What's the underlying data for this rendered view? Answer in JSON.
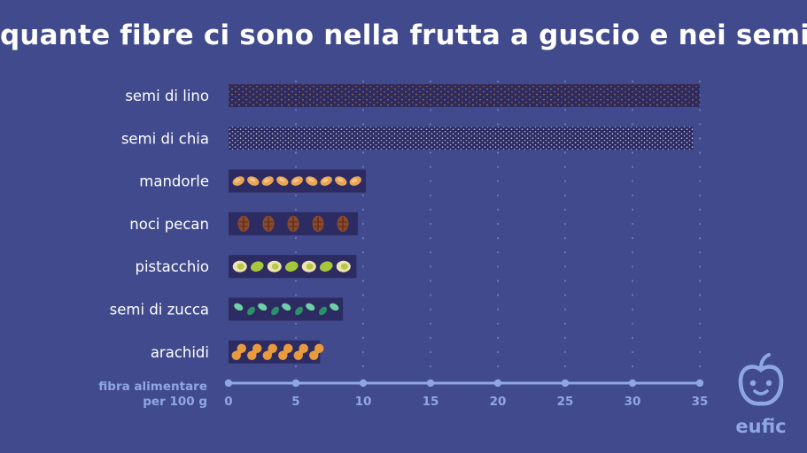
{
  "title": "quante fibre ci sono nella frutta a guscio e nei semi",
  "logo": {
    "text": "eufic",
    "icon": "apple-face-icon"
  },
  "colors": {
    "background": "#414a8c",
    "bar_background": "#2d2c62",
    "axis": "#8fa6e6",
    "grid": "#6d7ab8",
    "text": "#ffffff"
  },
  "chart_data": {
    "type": "bar",
    "orientation": "horizontal",
    "categories": [
      "semi di lino",
      "semi di chia",
      "mandorle",
      "noci pecan",
      "pistacchio",
      "semi di zucca",
      "arachidi"
    ],
    "values": [
      35,
      34.5,
      10.2,
      9.6,
      9.5,
      8.5,
      6.8
    ],
    "xlabel": [
      "fibra alimentare",
      "per 100 g"
    ],
    "xlim": [
      0,
      35
    ],
    "xticks": [
      0,
      5,
      10,
      15,
      20,
      25,
      30,
      35
    ],
    "grid": "vertical dotted",
    "bar_patterns": [
      "flax-seeds",
      "chia-seeds",
      "almond",
      "pecan",
      "pistachio",
      "pumpkin-seed",
      "peanut"
    ]
  }
}
